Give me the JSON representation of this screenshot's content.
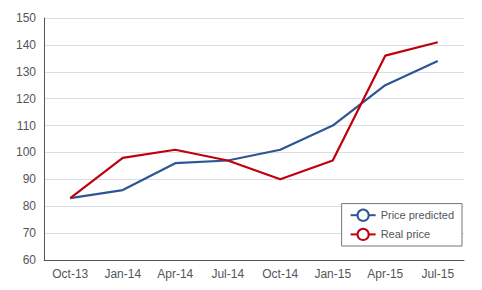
{
  "chart_data": {
    "type": "line",
    "categories": [
      "Oct-13",
      "Jan-14",
      "Apr-14",
      "Jul-14",
      "Oct-14",
      "Jan-15",
      "Apr-15",
      "Jul-15"
    ],
    "series": [
      {
        "name": "Price predicted",
        "color": "#2E5594",
        "values": [
          83,
          86,
          96,
          97,
          101,
          110,
          125,
          134
        ]
      },
      {
        "name": "Real price",
        "color": "#C0000C",
        "values": [
          83,
          98,
          101,
          97,
          90,
          97,
          136,
          141
        ]
      }
    ],
    "ylim": [
      60,
      150
    ],
    "yticks": [
      60,
      70,
      80,
      90,
      100,
      110,
      120,
      130,
      140,
      150
    ],
    "grid": true,
    "legend": "lower right"
  }
}
